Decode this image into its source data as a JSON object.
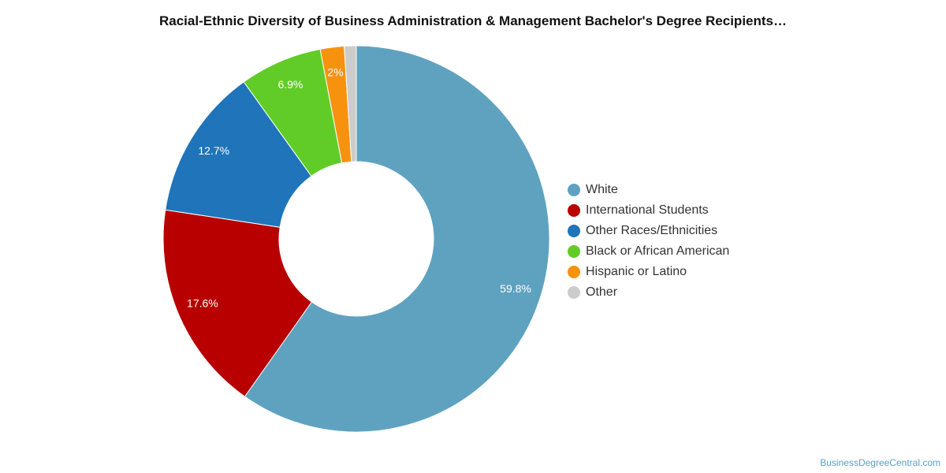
{
  "title": "Racial-Ethnic Diversity of Business Administration & Management Bachelor's Degree Recipients…",
  "watermark": "BusinessDegreeCentral.com",
  "chart_data": {
    "type": "pie",
    "variant": "donut",
    "title": "Racial-Ethnic Diversity of Business Administration & Management Bachelor's Degree Recipients…",
    "legend_position": "right",
    "slices": [
      {
        "name": "White",
        "value": 59.8,
        "label": "59.8%",
        "color": "#5fa2c0"
      },
      {
        "name": "International Students",
        "value": 17.6,
        "label": "17.6%",
        "color": "#b80000"
      },
      {
        "name": "Other Races/Ethnicities",
        "value": 12.7,
        "label": "12.7%",
        "color": "#1f74ba"
      },
      {
        "name": "Black or African American",
        "value": 6.9,
        "label": "6.9%",
        "color": "#61cc27"
      },
      {
        "name": "Hispanic or Latino",
        "value": 2.0,
        "label": "2%",
        "color": "#f7920f"
      },
      {
        "name": "Other",
        "value": 1.0,
        "label": "",
        "color": "#cccccc"
      }
    ]
  }
}
